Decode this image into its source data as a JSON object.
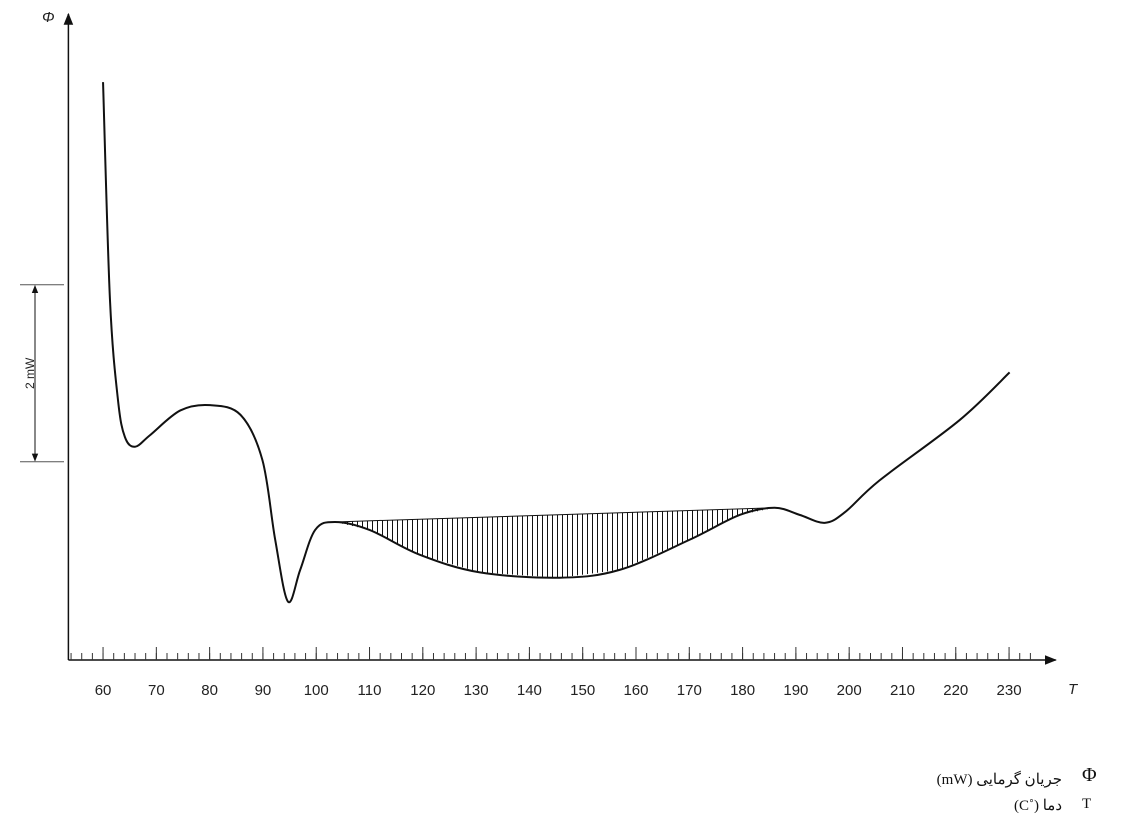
{
  "chart_data": {
    "type": "line",
    "x_label": "T",
    "y_label": "Φ",
    "x": [
      60,
      61.3,
      62.8,
      64.1,
      66,
      68.8,
      74.5,
      80.1,
      85.8,
      89.9,
      92.3,
      94.7,
      97,
      99.8,
      103.5,
      110,
      119.4,
      130.7,
      145.7,
      157,
      170.1,
      179.5,
      186,
      190.7,
      195.4,
      199.2,
      205.7,
      220.7,
      230.1
    ],
    "series": [
      {
        "color": "#111111",
        "values": [
          6.53,
          4.07,
          2.94,
          2.52,
          2.41,
          2.54,
          2.82,
          2.88,
          2.77,
          2.26,
          1.36,
          0.66,
          1.02,
          1.47,
          1.56,
          1.47,
          1.19,
          0.99,
          0.93,
          1.02,
          1.36,
          1.64,
          1.72,
          1.64,
          1.55,
          1.67,
          2.03,
          2.71,
          3.25
        ]
      }
    ],
    "baseline": {
      "x": [
        103.5,
        186
      ],
      "values": [
        1.56,
        1.72
      ]
    },
    "xlim": [
      53.5,
      238
    ],
    "ylim": [
      0,
      7.3
    ],
    "xticks": [
      60,
      70,
      80,
      90,
      100,
      110,
      120,
      130,
      140,
      150,
      160,
      170,
      180,
      190,
      200,
      210,
      220,
      230
    ],
    "minor_tick_step": 2,
    "scale_bar": {
      "from": 2.24,
      "to": 4.24,
      "label": "2 mW"
    },
    "notes": [
      {
        "symbol": "Φ",
        "text": "جریان گرمایی (mW)"
      },
      {
        "symbol": "T",
        "text": "دما (˚C)"
      }
    ]
  }
}
